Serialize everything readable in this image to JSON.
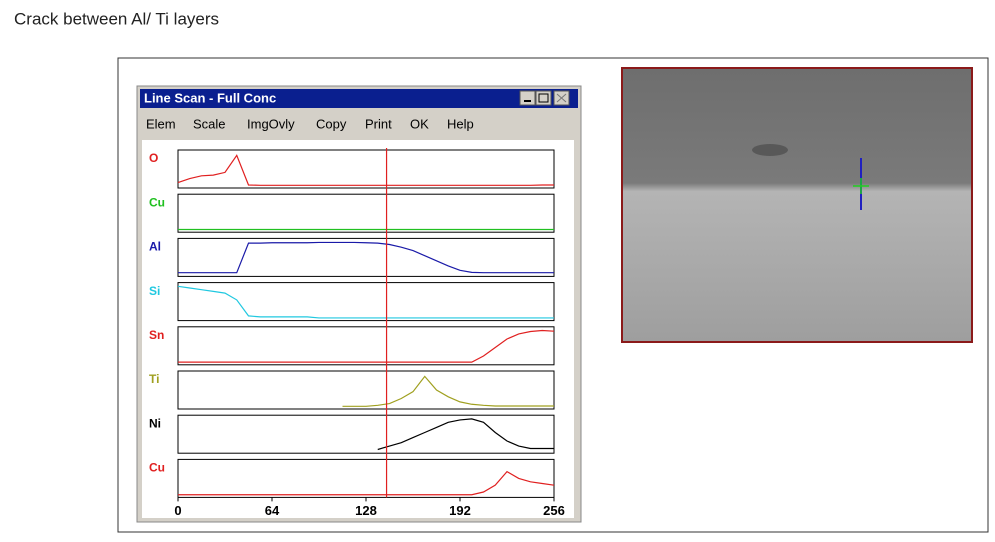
{
  "caption": "Crack between Al/ Ti layers",
  "window": {
    "title": "Line Scan - Full Conc",
    "menu": [
      "Elem",
      "Scale",
      "ImgOvly",
      "Copy",
      "Print",
      "OK",
      "Help"
    ]
  },
  "chart_data": {
    "type": "line",
    "x": [
      0,
      8,
      16,
      24,
      32,
      40,
      48,
      56,
      64,
      72,
      80,
      88,
      96,
      104,
      112,
      120,
      128,
      136,
      144,
      152,
      160,
      168,
      176,
      184,
      192,
      200,
      208,
      216,
      224,
      232,
      240,
      248,
      256
    ],
    "xlim": [
      0,
      256
    ],
    "xticks": [
      0,
      64,
      128,
      192,
      256
    ],
    "ylim": [
      0,
      100
    ],
    "cursor_x": 142,
    "series": [
      {
        "name": "O",
        "color": "#e02020",
        "values": [
          10,
          22,
          30,
          32,
          40,
          90,
          3,
          2,
          2,
          2,
          2,
          2,
          2,
          2,
          2,
          2,
          2,
          2,
          2,
          2,
          2,
          2,
          2,
          2,
          2,
          2,
          2,
          2,
          2,
          2,
          2,
          3,
          3
        ]
      },
      {
        "name": "Cu",
        "color": "#20c020",
        "values": [
          2,
          2,
          2,
          2,
          2,
          2,
          2,
          2,
          2,
          2,
          2,
          2,
          2,
          2,
          2,
          2,
          2,
          2,
          2,
          2,
          2,
          2,
          2,
          2,
          2,
          2,
          2,
          2,
          2,
          2,
          2,
          2,
          2
        ]
      },
      {
        "name": "Al",
        "color": "#1a1aa8",
        "values": [
          5,
          5,
          5,
          5,
          5,
          5,
          92,
          92,
          93,
          93,
          93,
          93,
          94,
          94,
          94,
          94,
          93,
          92,
          88,
          80,
          70,
          55,
          40,
          25,
          12,
          6,
          5,
          5,
          5,
          5,
          5,
          5,
          5
        ]
      },
      {
        "name": "Si",
        "color": "#20c8e0",
        "values": [
          95,
          90,
          85,
          80,
          75,
          55,
          8,
          5,
          5,
          5,
          5,
          5,
          2,
          2,
          2,
          2,
          2,
          2,
          2,
          2,
          2,
          2,
          2,
          2,
          2,
          2,
          2,
          2,
          2,
          2,
          2,
          2,
          2
        ]
      },
      {
        "name": "Sn",
        "color": "#e02020",
        "values": [
          2,
          2,
          2,
          2,
          2,
          2,
          2,
          2,
          2,
          2,
          2,
          2,
          2,
          2,
          2,
          2,
          2,
          2,
          2,
          2,
          2,
          2,
          2,
          2,
          2,
          2,
          20,
          45,
          70,
          85,
          92,
          95,
          93
        ]
      },
      {
        "name": "Ti",
        "color": "#a0a020",
        "values": [
          null,
          null,
          null,
          null,
          null,
          null,
          null,
          null,
          null,
          null,
          null,
          null,
          null,
          null,
          2,
          2,
          2,
          5,
          10,
          25,
          45,
          90,
          50,
          30,
          15,
          8,
          5,
          3,
          3,
          3,
          3,
          3,
          3
        ]
      },
      {
        "name": "Ni",
        "color": "#000000",
        "values": [
          null,
          null,
          null,
          null,
          null,
          null,
          null,
          null,
          null,
          null,
          null,
          null,
          null,
          null,
          null,
          null,
          null,
          5,
          15,
          25,
          40,
          55,
          70,
          85,
          92,
          95,
          85,
          55,
          30,
          15,
          8,
          8,
          8
        ]
      },
      {
        "name": "Cu",
        "color": "#e02020",
        "values": [
          2,
          2,
          2,
          2,
          2,
          2,
          2,
          2,
          2,
          2,
          2,
          2,
          2,
          2,
          2,
          2,
          2,
          2,
          2,
          2,
          2,
          2,
          2,
          2,
          2,
          2,
          10,
          30,
          70,
          50,
          40,
          35,
          30
        ]
      }
    ]
  }
}
